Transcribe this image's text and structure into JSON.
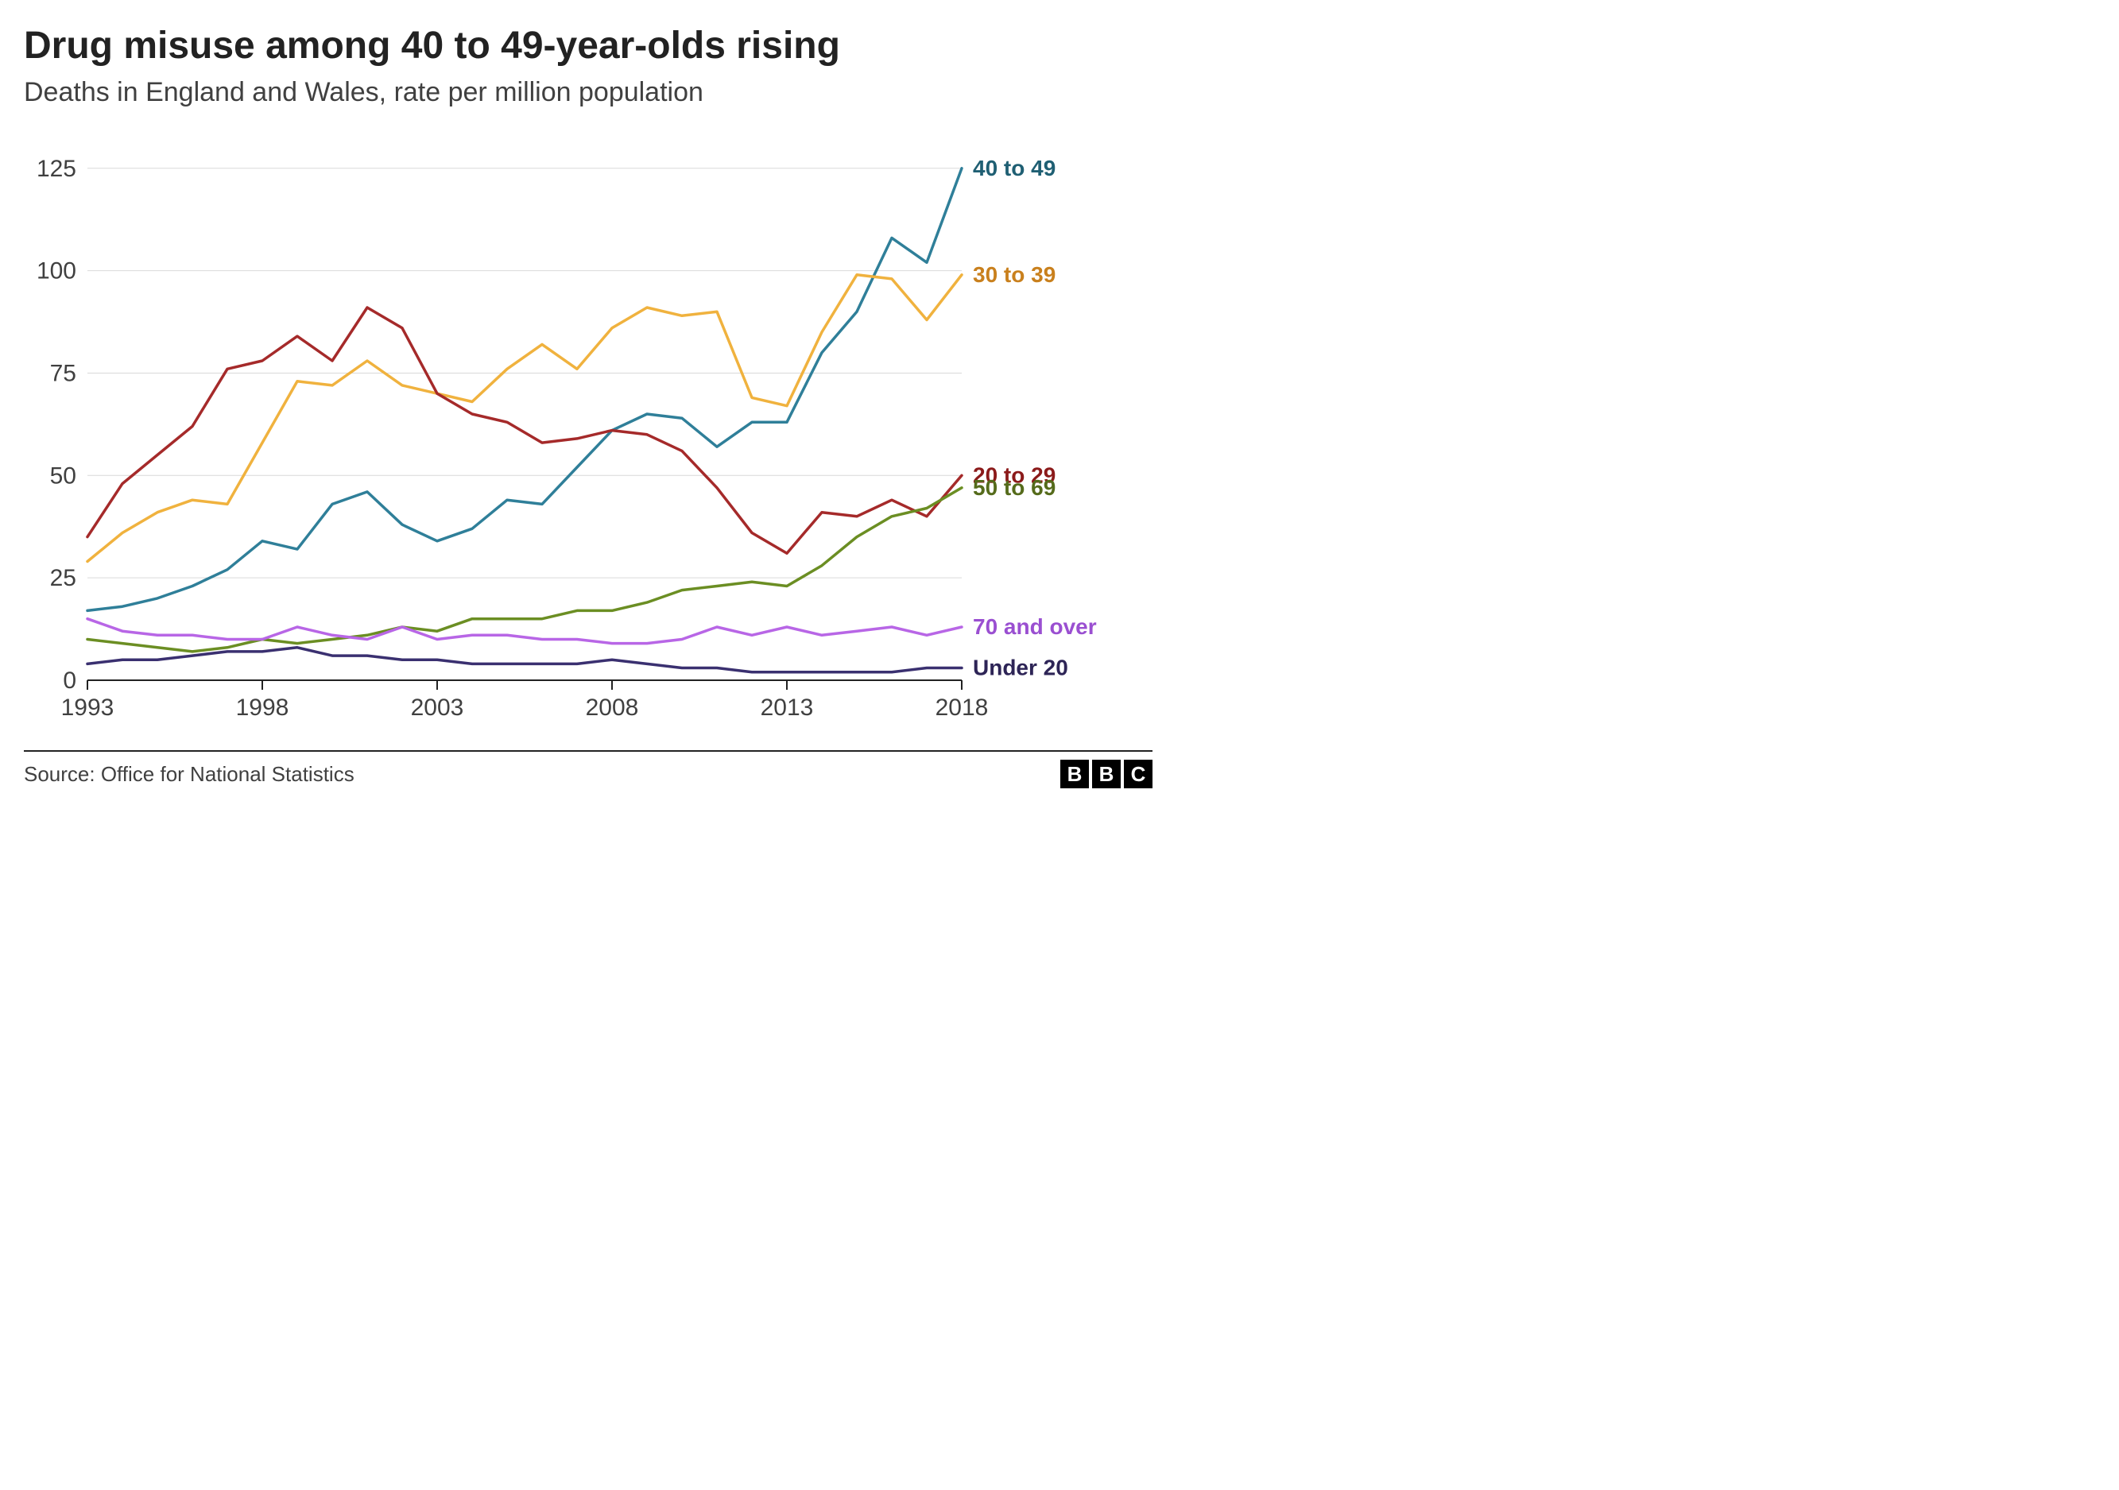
{
  "title": "Drug misuse among 40 to 49-year-olds rising",
  "subtitle": "Deaths in England and Wales, rate per million population",
  "source_label": "Source: Office for National Statistics",
  "logo_letters": [
    "B",
    "B",
    "C"
  ],
  "chart": {
    "type": "line",
    "background_color": "#ffffff",
    "grid_color": "#d9d9d9",
    "axis_color": "#222222",
    "tick_font_size": 30,
    "label_font_size": 28,
    "line_width": 3.5,
    "x": {
      "min": 1993,
      "max": 2018,
      "ticks": [
        1993,
        1998,
        2003,
        2008,
        2013,
        2018
      ]
    },
    "y": {
      "min": 0,
      "max": 130,
      "ticks": [
        0,
        25,
        50,
        75,
        100,
        125
      ]
    },
    "years": [
      1993,
      1994,
      1995,
      1996,
      1997,
      1998,
      1999,
      2000,
      2001,
      2002,
      2003,
      2004,
      2005,
      2006,
      2007,
      2008,
      2009,
      2010,
      2011,
      2012,
      2013,
      2014,
      2015,
      2016,
      2017,
      2018
    ],
    "series": [
      {
        "name": "40 to 49",
        "color": "#2f7f99",
        "label_color": "#1f5f73",
        "values": [
          17,
          18,
          20,
          23,
          27,
          34,
          32,
          43,
          46,
          38,
          34,
          37,
          44,
          43,
          52,
          61,
          65,
          64,
          57,
          63,
          63,
          80,
          90,
          108,
          102,
          125
        ]
      },
      {
        "name": "30 to 39",
        "color": "#f0b23e",
        "label_color": "#c9801d",
        "values": [
          29,
          36,
          41,
          44,
          43,
          58,
          73,
          72,
          78,
          72,
          70,
          68,
          76,
          82,
          76,
          86,
          91,
          89,
          90,
          69,
          67,
          85,
          99,
          98,
          88,
          99
        ]
      },
      {
        "name": "20 to 29",
        "color": "#a52a2a",
        "label_color": "#8b1a1a",
        "values": [
          35,
          48,
          55,
          62,
          76,
          78,
          84,
          78,
          91,
          86,
          70,
          65,
          63,
          58,
          59,
          61,
          60,
          56,
          47,
          36,
          31,
          41,
          40,
          44,
          40,
          50
        ]
      },
      {
        "name": "50 to 69",
        "color": "#6b8e23",
        "label_color": "#556b1b",
        "values": [
          10,
          9,
          8,
          7,
          8,
          10,
          9,
          10,
          11,
          13,
          12,
          15,
          15,
          15,
          17,
          17,
          19,
          22,
          23,
          24,
          23,
          28,
          35,
          40,
          42,
          47
        ]
      },
      {
        "name": "70 and over",
        "color": "#b866e6",
        "label_color": "#9a4fd1",
        "values": [
          15,
          12,
          11,
          11,
          10,
          10,
          13,
          11,
          10,
          13,
          10,
          11,
          11,
          10,
          10,
          9,
          9,
          10,
          13,
          11,
          13,
          11,
          12,
          13,
          11,
          13
        ]
      },
      {
        "name": "Under 20",
        "color": "#3a3070",
        "label_color": "#2d2456",
        "values": [
          4,
          5,
          5,
          6,
          7,
          7,
          8,
          6,
          6,
          5,
          5,
          4,
          4,
          4,
          4,
          5,
          4,
          3,
          3,
          2,
          2,
          2,
          2,
          2,
          3,
          3
        ]
      }
    ]
  }
}
